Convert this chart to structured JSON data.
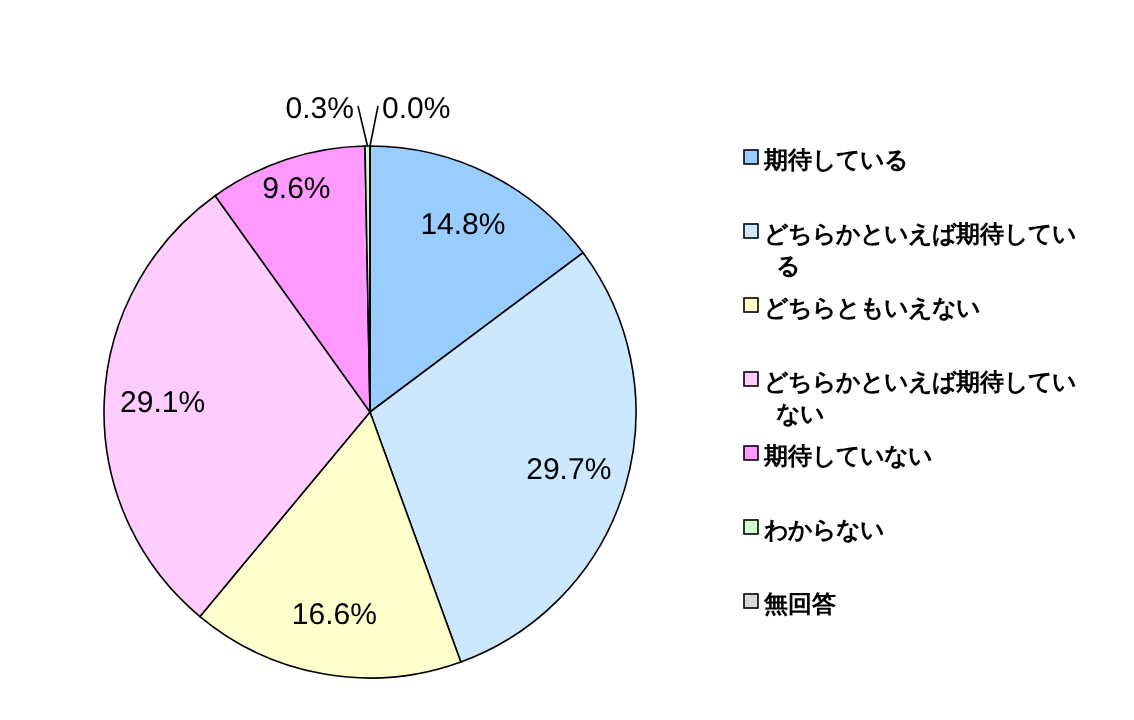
{
  "chart_data": {
    "type": "pie",
    "categories": [
      "期待している",
      "どちらかといえば期待している",
      "どちらともいえない",
      "どちらかといえば期待していない",
      "期待していない",
      "わからない",
      "無回答"
    ],
    "values": [
      14.8,
      29.7,
      16.6,
      29.1,
      9.6,
      0.3,
      0.0
    ],
    "colors": [
      "#99ccff",
      "#cce8ff",
      "#ffffcc",
      "#ffccff",
      "#ff99ff",
      "#ccffcc",
      "#d9d9d9"
    ],
    "value_labels": [
      "14.8%",
      "29.7%",
      "16.6%",
      "29.1%",
      "9.6%",
      "0.3%",
      "0.0%"
    ],
    "legend": "right"
  }
}
